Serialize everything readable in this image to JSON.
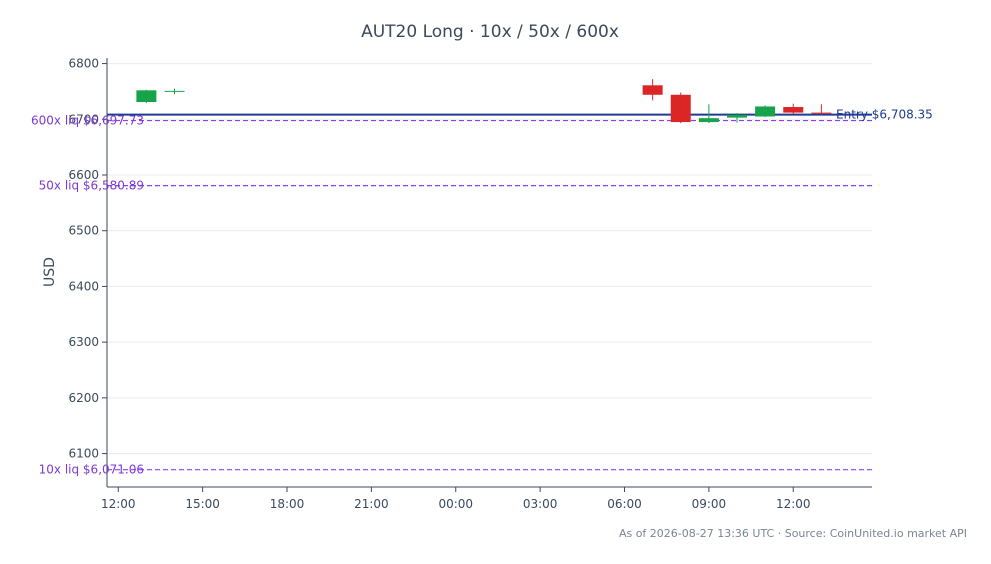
{
  "chart_data": {
    "type": "candlestick",
    "title": "AUT20 Long · 10x / 50x / 600x",
    "ylabel": "USD",
    "ylim": [
      6040,
      6810
    ],
    "yticks": [
      6100,
      6200,
      6300,
      6400,
      6500,
      6600,
      6700,
      6800
    ],
    "xrange_hours": [
      -0.4,
      26.8
    ],
    "xticks": [
      {
        "h": 0,
        "label": "12:00"
      },
      {
        "h": 3,
        "label": "15:00"
      },
      {
        "h": 6,
        "label": "18:00"
      },
      {
        "h": 9,
        "label": "21:00"
      },
      {
        "h": 12,
        "label": "00:00"
      },
      {
        "h": 15,
        "label": "03:00"
      },
      {
        "h": 18,
        "label": "06:00"
      },
      {
        "h": 21,
        "label": "09:00"
      },
      {
        "h": 24,
        "label": "12:00"
      }
    ],
    "candles": [
      {
        "h": 1,
        "open": 6731,
        "high": 6753,
        "low": 6729,
        "close": 6752
      },
      {
        "h": 2,
        "open": 6750,
        "high": 6755,
        "low": 6745,
        "close": 6751
      },
      {
        "h": 19,
        "open": 6761,
        "high": 6772,
        "low": 6734,
        "close": 6744
      },
      {
        "h": 20,
        "open": 6744,
        "high": 6748,
        "low": 6693,
        "close": 6695
      },
      {
        "h": 21,
        "open": 6695,
        "high": 6727,
        "low": 6693,
        "close": 6702
      },
      {
        "h": 22,
        "open": 6703,
        "high": 6711,
        "low": 6694,
        "close": 6708
      },
      {
        "h": 23,
        "open": 6705,
        "high": 6725,
        "low": 6704,
        "close": 6723
      },
      {
        "h": 24,
        "open": 6722,
        "high": 6728,
        "low": 6709,
        "close": 6712
      },
      {
        "h": 25,
        "open": 6712,
        "high": 6727,
        "low": 6709,
        "close": 6711
      }
    ],
    "levels": [
      {
        "value": 6708.35,
        "label": "Entry $6,708.35",
        "color": "#1f3a93",
        "style": "solid",
        "label_side": "right"
      },
      {
        "value": 6697.73,
        "label": "600x liq $6,697.73",
        "color": "#8a3ffc",
        "style": "dashed",
        "label_side": "left"
      },
      {
        "value": 6580.89,
        "label": "50x liq $6,580.89",
        "color": "#8a3ffc",
        "style": "dashed",
        "label_side": "left"
      },
      {
        "value": 6071.06,
        "label": "10x liq $6,071.06",
        "color": "#8a3ffc",
        "style": "dashed",
        "label_side": "left"
      }
    ],
    "colors": {
      "up": "#16a34a",
      "down": "#dc2626",
      "grid": "#ececec",
      "axis": "#3b4a5c",
      "label_text": "#7e3ad6"
    }
  },
  "footer": "As of 2026-08-27 13:36 UTC · Source: CoinUnited.io market API"
}
